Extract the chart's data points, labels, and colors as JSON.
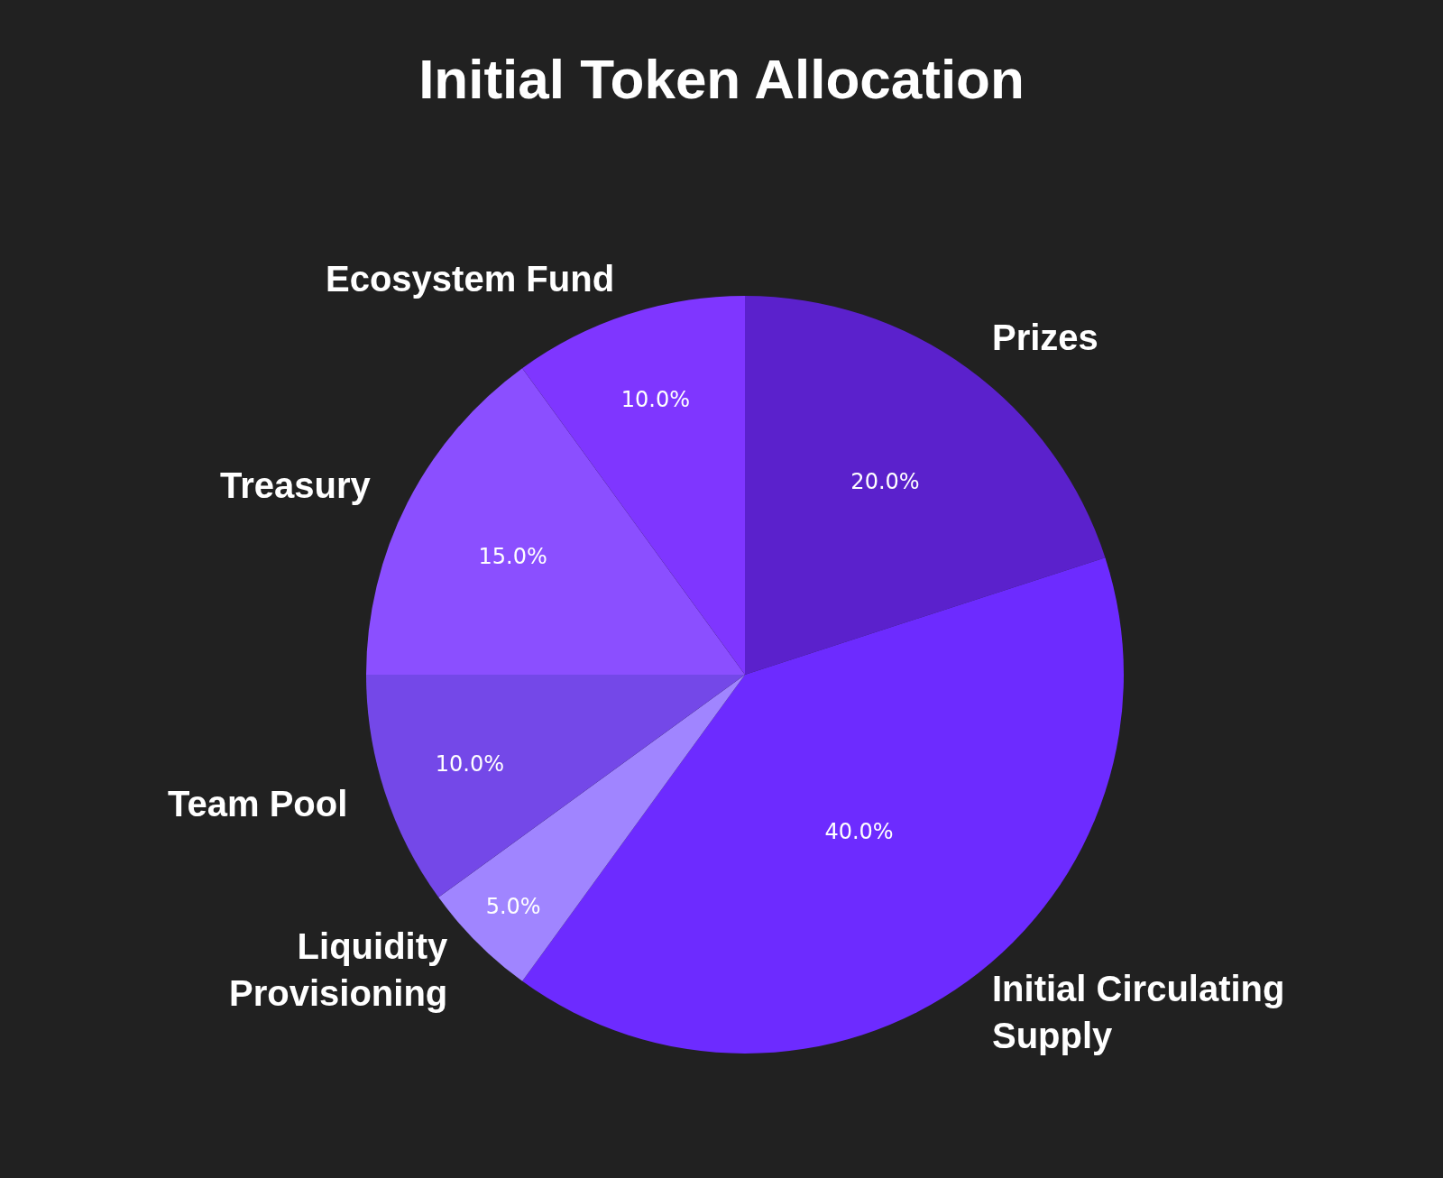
{
  "chart_data": {
    "type": "pie",
    "title": "Initial Token Allocation",
    "categories": [
      "Prizes",
      "Initial Circulating Supply",
      "Liquidity Provisioning",
      "Team Pool",
      "Treasury",
      "Ecosystem Fund"
    ],
    "values": [
      20,
      40,
      5,
      10,
      15,
      10
    ],
    "colors": [
      "#5b21cc",
      "#6d2bff",
      "#a085ff",
      "#7448e8",
      "#8b4fff",
      "#7f36ff"
    ],
    "value_labels": [
      "20.0%",
      "40.0%",
      "5.0%",
      "10.0%",
      "15.0%",
      "10.0%"
    ],
    "legend": false
  }
}
